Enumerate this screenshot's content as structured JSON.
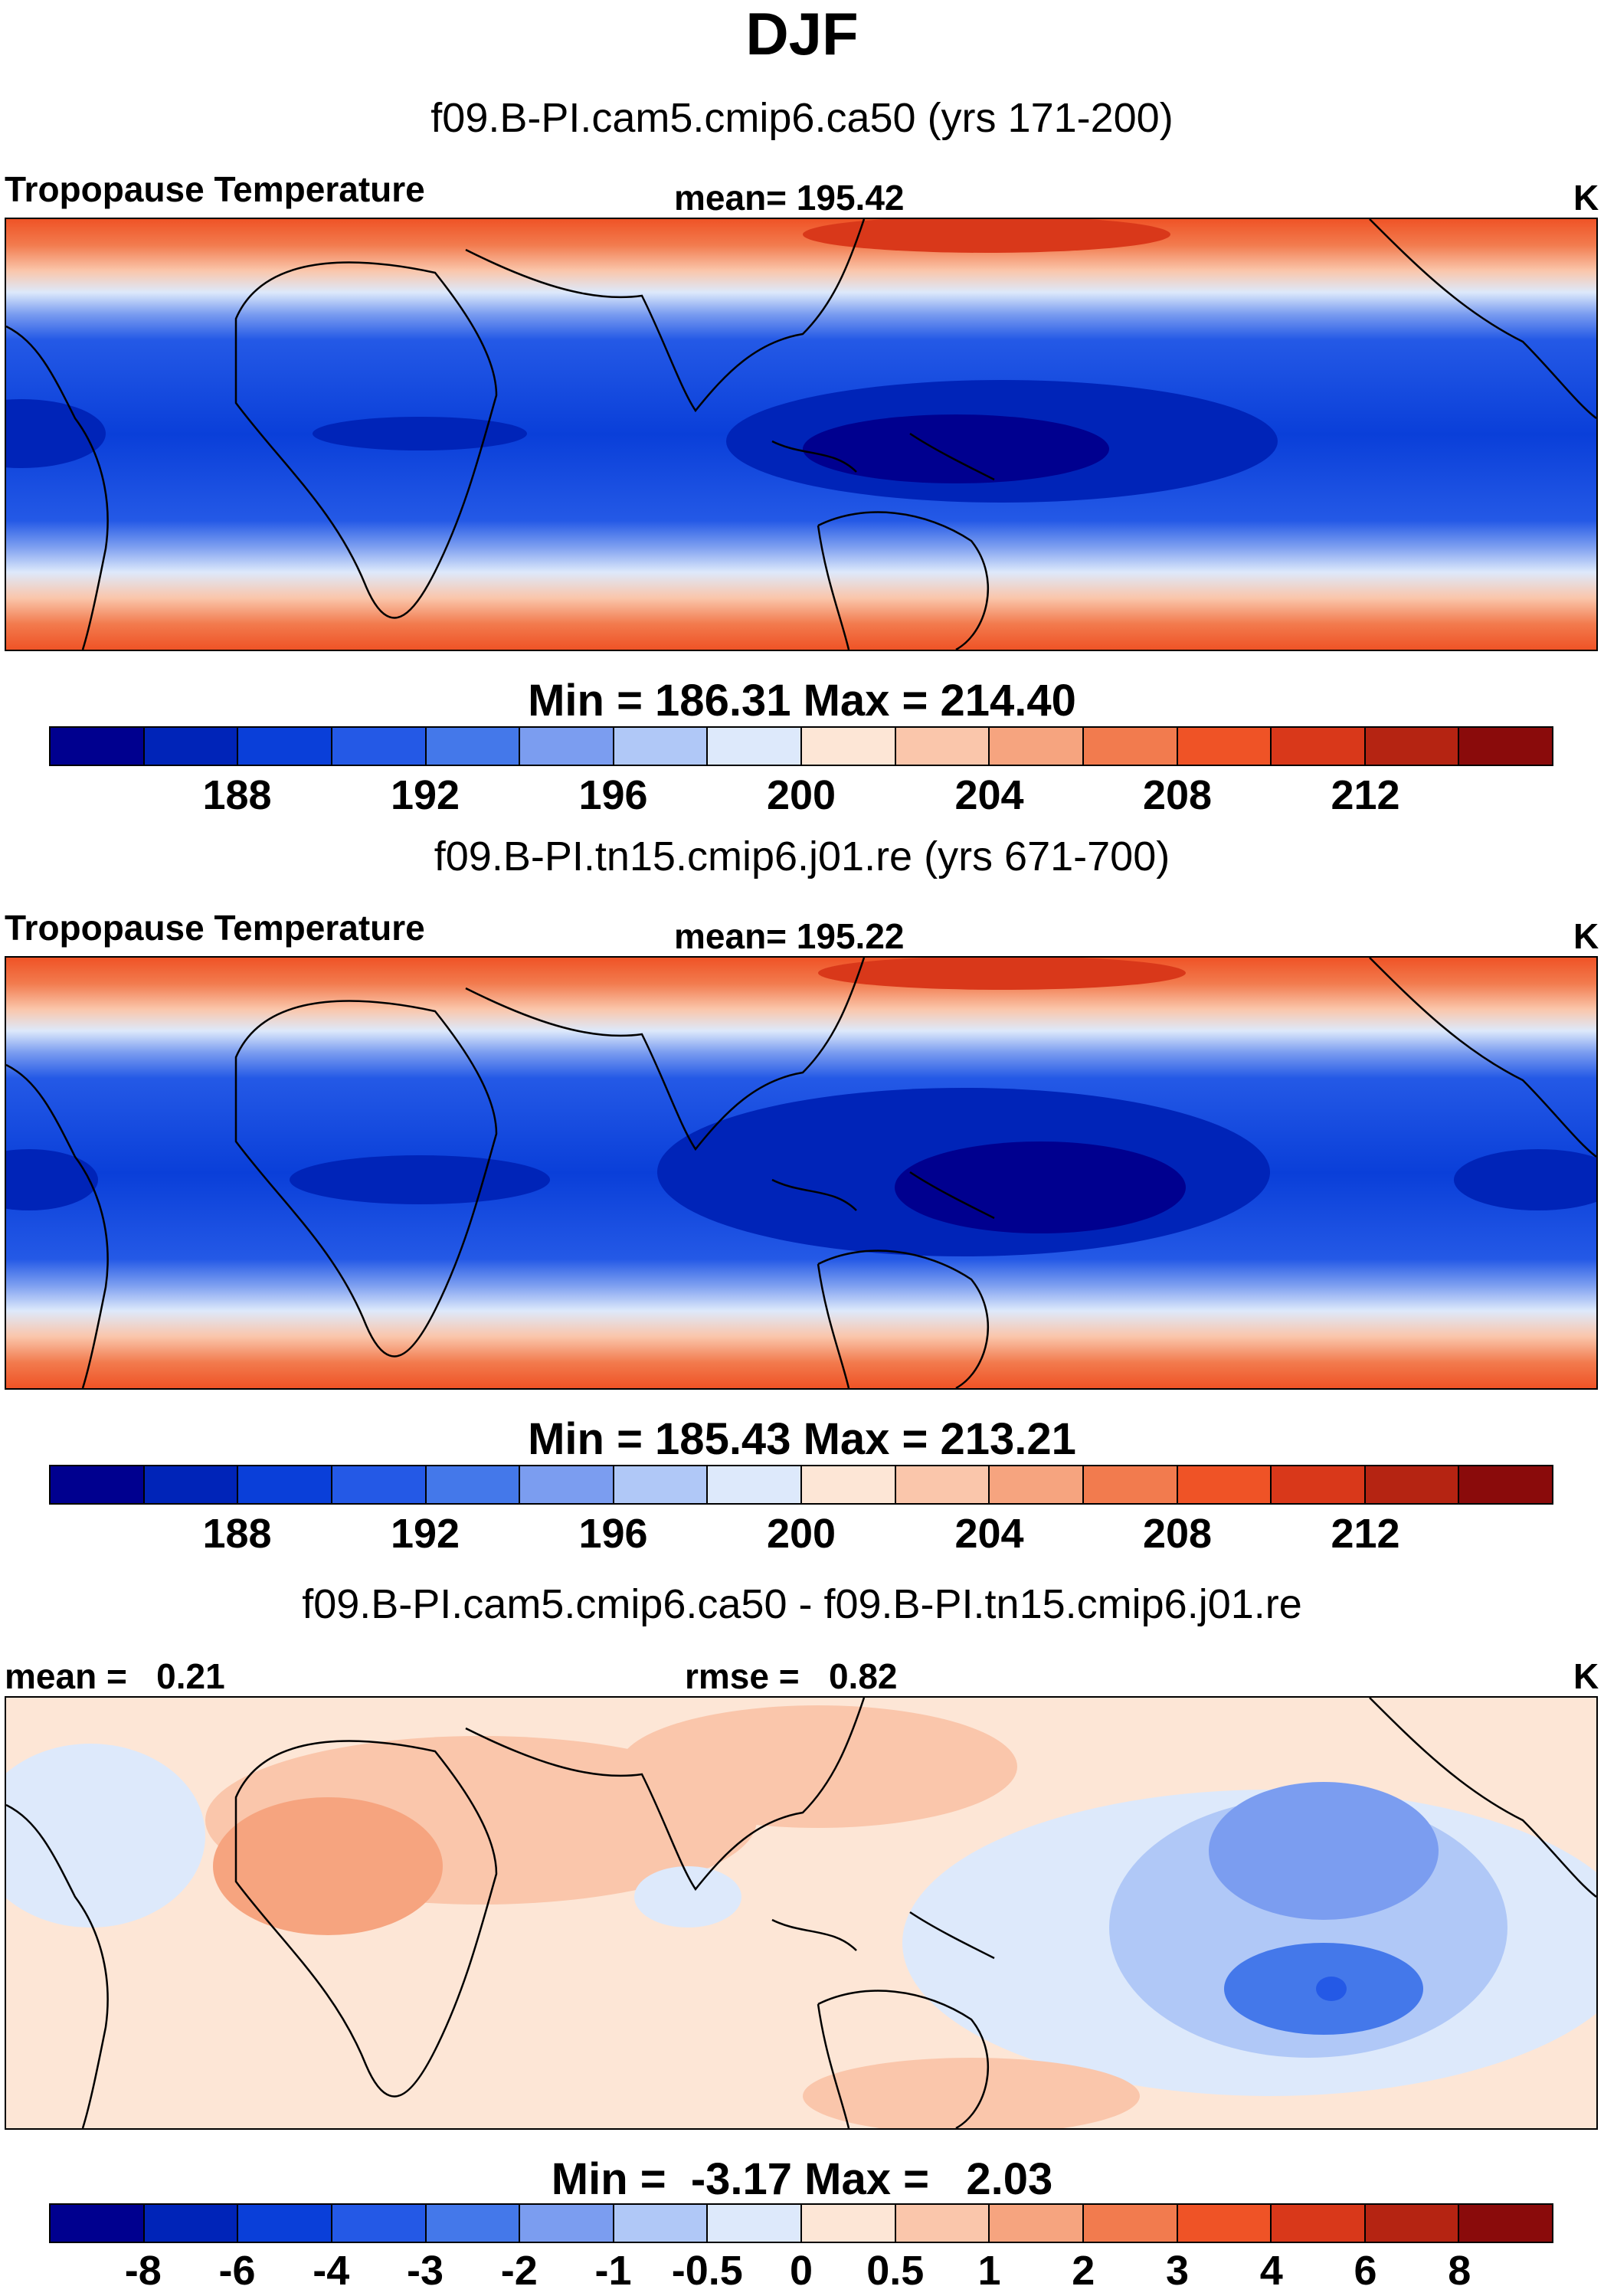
{
  "main_title": "DJF",
  "chart_data": [
    {
      "type": "heatmap",
      "title": "f09.B-PI.cam5.cmip6.ca50 (yrs 171-200)",
      "left_label": "Tropopause Temperature",
      "center_label": "mean= 195.42",
      "units": "K",
      "min_max_label": "Min = 186.31 Max = 214.40",
      "stats": {
        "mean": 195.42,
        "min": 186.31,
        "max": 214.4
      },
      "colorbar": {
        "levels": [
          186,
          188,
          190,
          192,
          194,
          196,
          198,
          200,
          202,
          204,
          206,
          208,
          210,
          212,
          214
        ],
        "tick_labels": [
          "188",
          "192",
          "196",
          "200",
          "204",
          "208",
          "212"
        ],
        "colors": [
          "#00008f",
          "#0024b8",
          "#0a3fd9",
          "#2459e6",
          "#4478ea",
          "#7b9df0",
          "#b0c8f7",
          "#dde9fb",
          "#fde6d6",
          "#fac6ab",
          "#f6a47f",
          "#f27b4e",
          "#ef5326",
          "#d9381a",
          "#b52412",
          "#8a0b0b"
        ]
      }
    },
    {
      "type": "heatmap",
      "title": "f09.B-PI.tn15.cmip6.j01.re (yrs 671-700)",
      "left_label": "Tropopause Temperature",
      "center_label": "mean= 195.22",
      "units": "K",
      "min_max_label": "Min = 185.43 Max = 213.21",
      "stats": {
        "mean": 195.22,
        "min": 185.43,
        "max": 213.21
      },
      "colorbar": {
        "levels": [
          186,
          188,
          190,
          192,
          194,
          196,
          198,
          200,
          202,
          204,
          206,
          208,
          210,
          212,
          214
        ],
        "tick_labels": [
          "188",
          "192",
          "196",
          "200",
          "204",
          "208",
          "212"
        ],
        "colors": [
          "#00008f",
          "#0024b8",
          "#0a3fd9",
          "#2459e6",
          "#4478ea",
          "#7b9df0",
          "#b0c8f7",
          "#dde9fb",
          "#fde6d6",
          "#fac6ab",
          "#f6a47f",
          "#f27b4e",
          "#ef5326",
          "#d9381a",
          "#b52412",
          "#8a0b0b"
        ]
      }
    },
    {
      "type": "heatmap",
      "title": "f09.B-PI.cam5.cmip6.ca50 - f09.B-PI.tn15.cmip6.j01.re",
      "mean_label": "mean =   0.21",
      "rmse_label": "rmse =   0.82",
      "units": "K",
      "min_max_label": "Min =  -3.17 Max =   2.03",
      "stats": {
        "mean": 0.21,
        "rmse": 0.82,
        "min": -3.17,
        "max": 2.03
      },
      "colorbar": {
        "levels": [
          -8,
          -6,
          -4,
          -3,
          -2,
          -1,
          -0.5,
          0,
          0.5,
          1,
          2,
          3,
          4,
          6,
          8
        ],
        "tick_labels": [
          "-8",
          "-6",
          "-4",
          "-3",
          "-2",
          "-1",
          "-0.5",
          "0",
          "0.5",
          "1",
          "2",
          "3",
          "4",
          "6",
          "8"
        ],
        "colors": [
          "#00008f",
          "#0024b8",
          "#0a3fd9",
          "#2459e6",
          "#4478ea",
          "#7b9df0",
          "#b0c8f7",
          "#dde9fb",
          "#fde6d6",
          "#fac6ab",
          "#f6a47f",
          "#f27b4e",
          "#ef5326",
          "#d9381a",
          "#b52412",
          "#8a0b0b"
        ]
      }
    }
  ]
}
